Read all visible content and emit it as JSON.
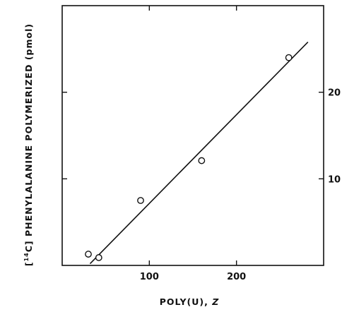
{
  "chart_data": {
    "type": "scatter",
    "xlabel": "POLY(U), Z",
    "ylabel": "[14C] PHENYLALANINE POLYMERIZED (pmol)",
    "ylabel_superscript": "14",
    "ylabel_rest": "C] PHENYLALANINE POLYMERIZED (pmol)",
    "xlim": [
      0,
      300
    ],
    "ylim": [
      0,
      30
    ],
    "x_ticks": [
      100,
      200
    ],
    "y_ticks": [
      10,
      20
    ],
    "x_tick_labels": [
      "100",
      "200"
    ],
    "y_tick_labels": [
      "10",
      "20"
    ],
    "grid": false,
    "series": [
      {
        "points": [
          {
            "x": 30,
            "y": 1.3
          },
          {
            "x": 42,
            "y": 0.9
          },
          {
            "x": 90,
            "y": 7.5
          },
          {
            "x": 160,
            "y": 12.1
          },
          {
            "x": 260,
            "y": 24.0
          }
        ],
        "fit_line": [
          {
            "x": 32,
            "y": 0.2
          },
          {
            "x": 282,
            "y": 25.8
          }
        ]
      }
    ]
  }
}
